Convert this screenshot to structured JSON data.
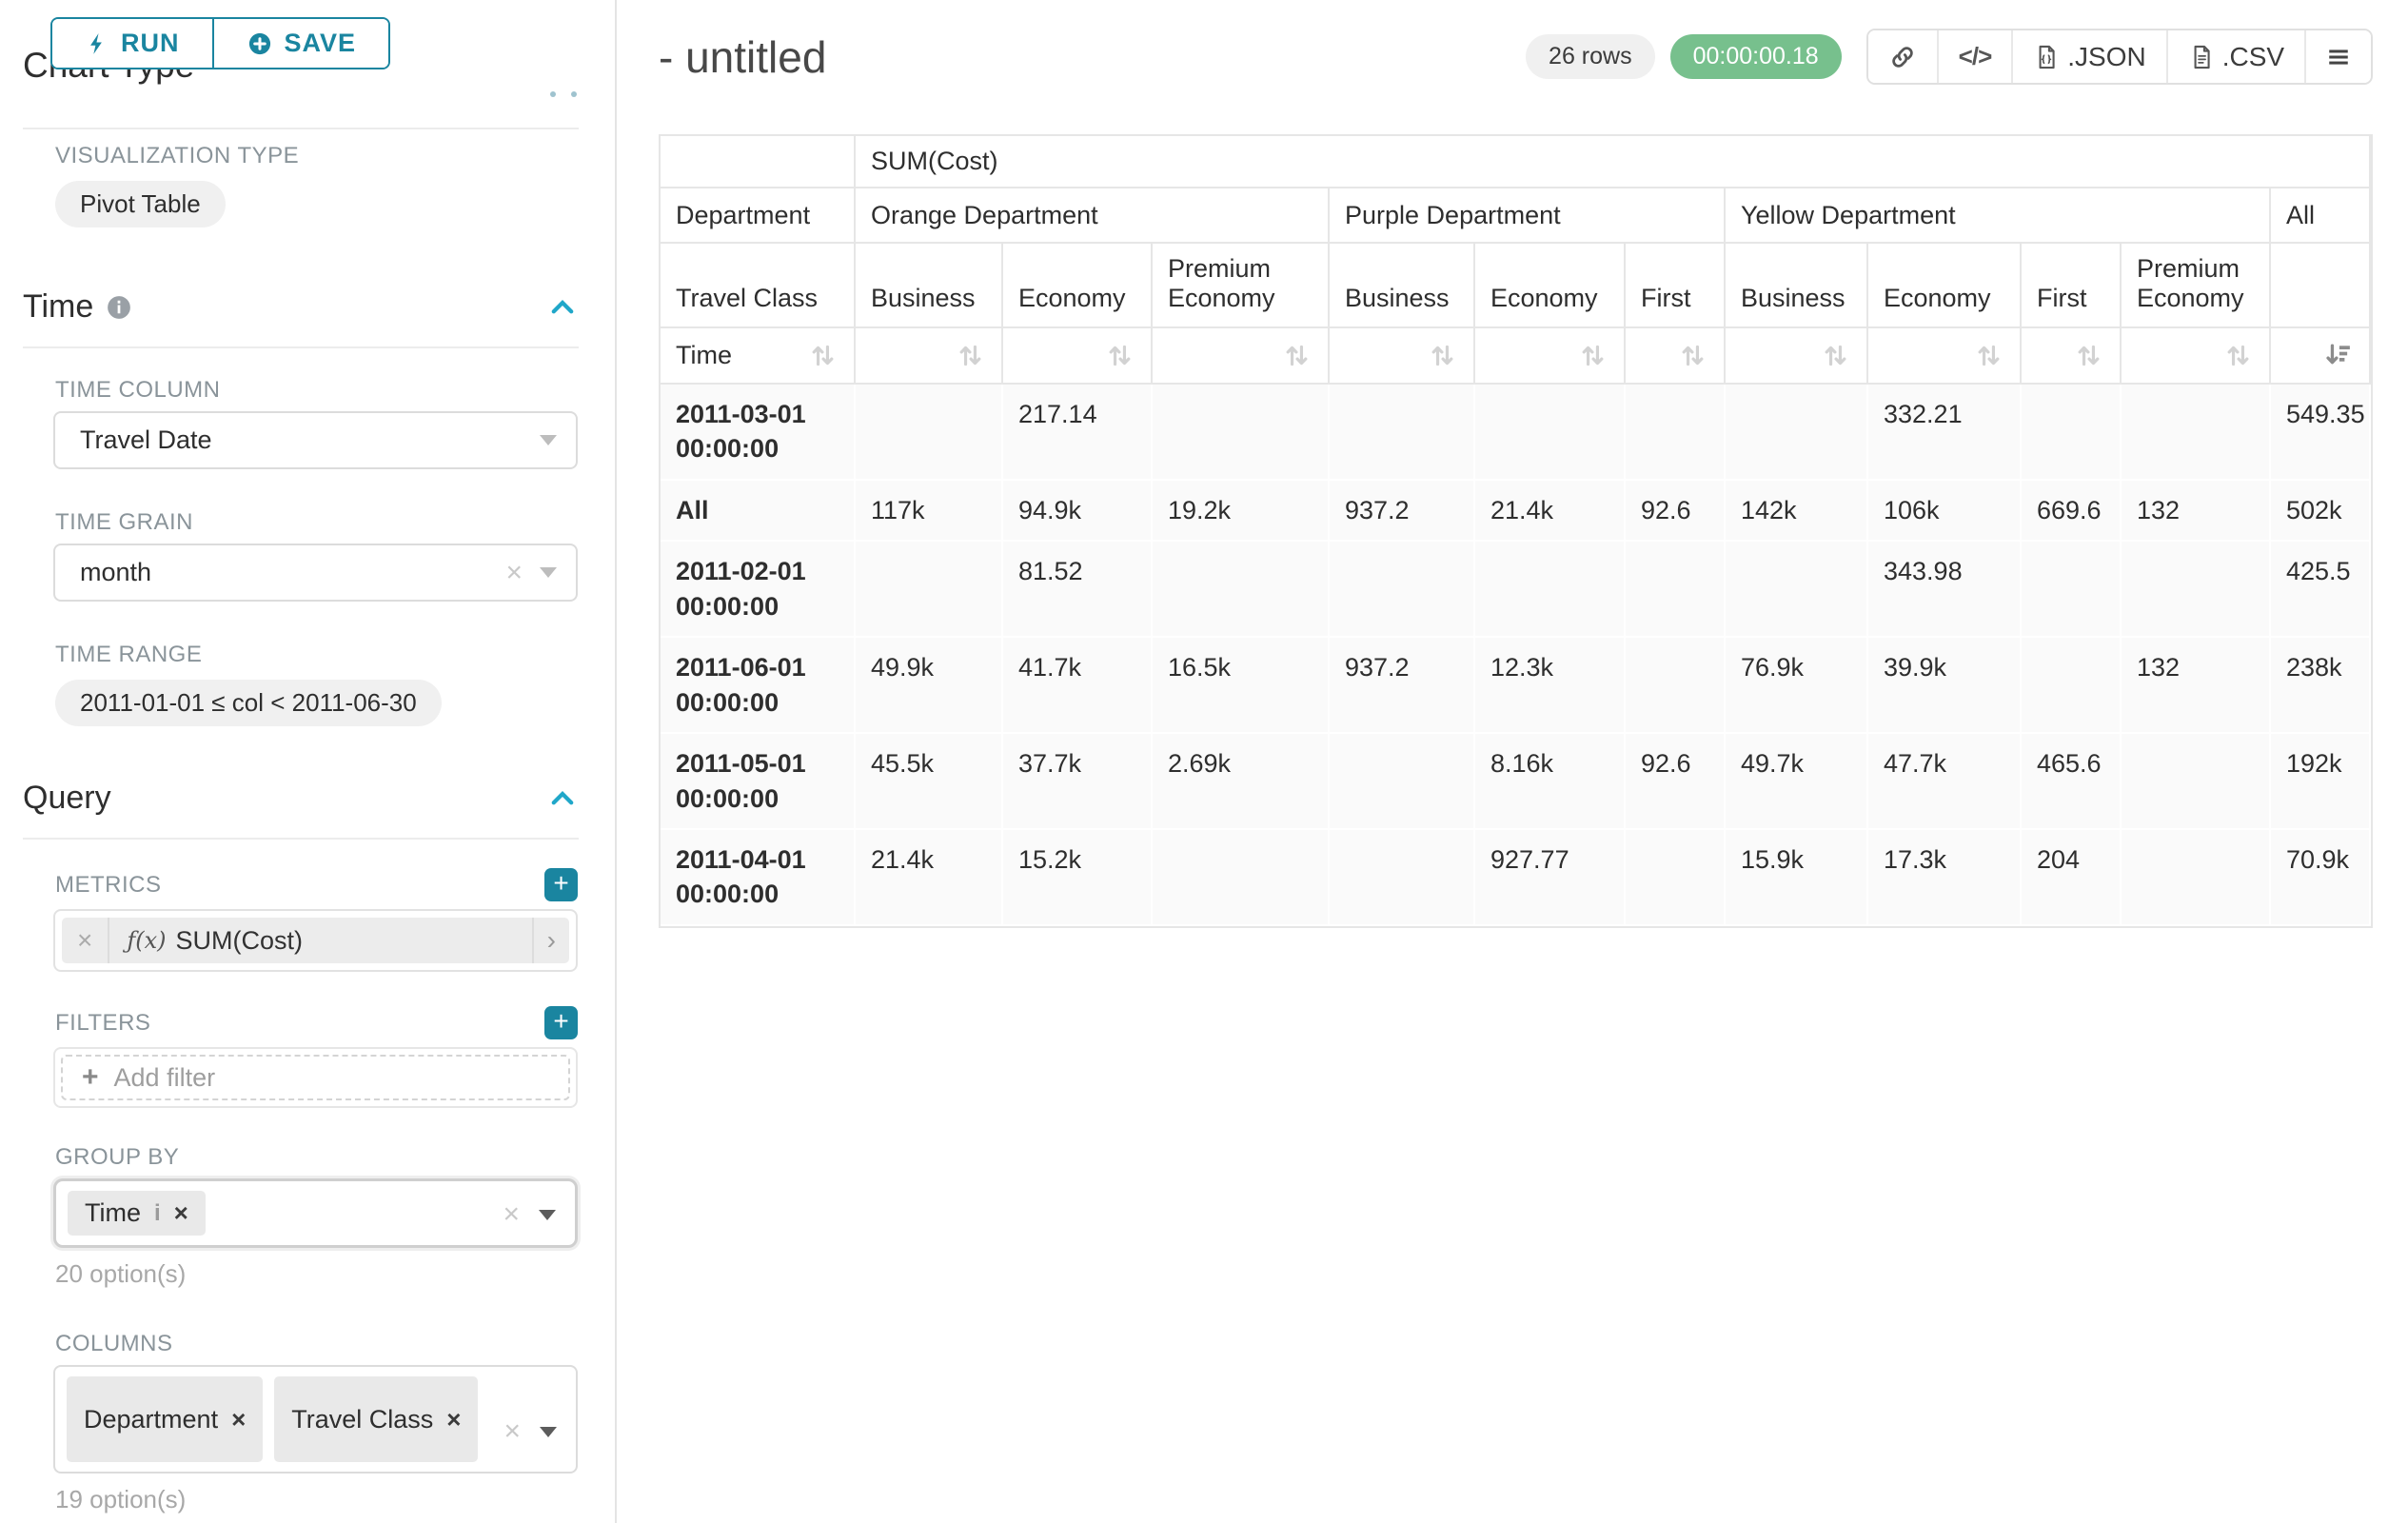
{
  "colors": {
    "accent": "#1a85a0",
    "accent_light": "#20a7c9",
    "success": "#77c08d"
  },
  "sidebar": {
    "run_label": "RUN",
    "save_label": "SAVE",
    "chart_type_heading": "Chart Type",
    "visualization": {
      "label": "VISUALIZATION TYPE",
      "value": "Pivot Table"
    },
    "time_section_title": "Time",
    "time_column": {
      "label": "TIME COLUMN",
      "value": "Travel Date"
    },
    "time_grain": {
      "label": "TIME GRAIN",
      "value": "month"
    },
    "time_range": {
      "label": "TIME RANGE",
      "value": "2011-01-01 ≤ col < 2011-06-30"
    },
    "query_section_title": "Query",
    "metrics": {
      "label": "METRICS",
      "chip_prefix": "ƒ(x)",
      "chip_value": "SUM(Cost)"
    },
    "filters": {
      "label": "FILTERS",
      "placeholder": "Add filter"
    },
    "group_by": {
      "label": "GROUP BY",
      "chips": [
        "Time"
      ],
      "hint": "20 option(s)"
    },
    "columns": {
      "label": "COLUMNS",
      "chips": [
        "Department",
        "Travel Class"
      ],
      "hint": "19 option(s)"
    }
  },
  "header": {
    "title": "- untitled",
    "row_count": "26 rows",
    "timer": "00:00:00.18",
    "json_label": ".JSON",
    "csv_label": ".CSV"
  },
  "table": {
    "metric_header": "SUM(Cost)",
    "row_dim_label": "Department",
    "row_dim2_label": "Travel Class",
    "time_label": "Time",
    "groups": [
      {
        "label": "Orange Department",
        "cols": [
          "Business",
          "Economy",
          "Premium Economy"
        ]
      },
      {
        "label": "Purple Department",
        "cols": [
          "Business",
          "Economy",
          "First"
        ]
      },
      {
        "label": "Yellow Department",
        "cols": [
          "Business",
          "Economy",
          "First",
          "Premium Economy"
        ]
      },
      {
        "label": "All",
        "cols": [
          ""
        ]
      }
    ],
    "rows": [
      {
        "key": "2011-03-01 00:00:00",
        "values": [
          "",
          "217.14",
          "",
          "",
          "",
          "",
          "",
          "332.21",
          "",
          "",
          "549.35"
        ]
      },
      {
        "key": "All",
        "values": [
          "117k",
          "94.9k",
          "19.2k",
          "937.2",
          "21.4k",
          "92.6",
          "142k",
          "106k",
          "669.6",
          "132",
          "502k"
        ]
      },
      {
        "key": "2011-02-01 00:00:00",
        "values": [
          "",
          "81.52",
          "",
          "",
          "",
          "",
          "",
          "343.98",
          "",
          "",
          "425.5"
        ]
      },
      {
        "key": "2011-06-01 00:00:00",
        "values": [
          "49.9k",
          "41.7k",
          "16.5k",
          "937.2",
          "12.3k",
          "",
          "76.9k",
          "39.9k",
          "",
          "132",
          "238k"
        ]
      },
      {
        "key": "2011-05-01 00:00:00",
        "values": [
          "45.5k",
          "37.7k",
          "2.69k",
          "",
          "8.16k",
          "92.6",
          "49.7k",
          "47.7k",
          "465.6",
          "",
          "192k"
        ]
      },
      {
        "key": "2011-04-01 00:00:00",
        "values": [
          "21.4k",
          "15.2k",
          "",
          "",
          "927.77",
          "",
          "15.9k",
          "17.3k",
          "204",
          "",
          "70.9k"
        ]
      }
    ]
  }
}
